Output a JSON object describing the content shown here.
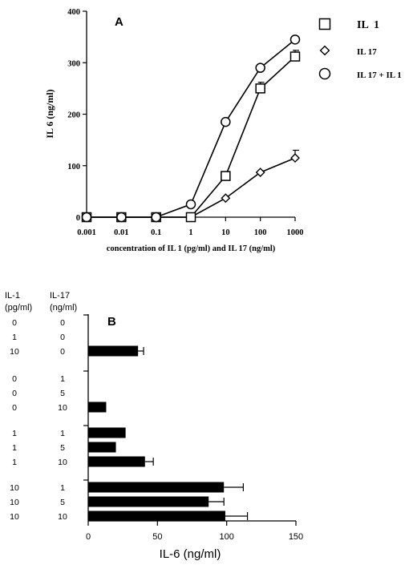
{
  "chart_data": [
    {
      "panel": "A",
      "type": "line",
      "ylabel": "IL 6 (ng/ml)",
      "xlabel": "concentration of IL 1 (pg/ml) and IL 17 (ng/ml)",
      "xscale": "log",
      "xlim": [
        0.001,
        1000
      ],
      "ylim": [
        0,
        400
      ],
      "x_ticks": [
        "0.001",
        "0.01",
        "0.1",
        "1",
        "10",
        "100",
        "1000"
      ],
      "y_ticks": [
        "0",
        "100",
        "200",
        "300",
        "400"
      ],
      "legend_position": "top-right",
      "x": [
        0.001,
        0.01,
        0.1,
        1,
        10,
        100,
        1000
      ],
      "series": [
        {
          "name": "IL  1",
          "marker": "square",
          "values": [
            0,
            0,
            0,
            0,
            80,
            250,
            312
          ],
          "error": [
            0,
            0,
            0,
            0,
            0,
            12,
            12
          ]
        },
        {
          "name": "IL 17",
          "marker": "diamond",
          "values": [
            0,
            0,
            0,
            0,
            37,
            87,
            115
          ],
          "error": [
            0,
            0,
            0,
            0,
            0,
            0,
            15
          ]
        },
        {
          "name": "IL 17 + IL 1",
          "marker": "circle",
          "values": [
            0,
            0,
            0,
            25,
            185,
            290,
            345
          ],
          "error": [
            0,
            0,
            0,
            0,
            0,
            0,
            0
          ]
        }
      ]
    },
    {
      "panel": "B",
      "type": "bar",
      "orientation": "horizontal",
      "xlabel": "IL-6 (ng/ml)",
      "xlim": [
        0,
        150
      ],
      "x_ticks": [
        "0",
        "50",
        "100",
        "150"
      ],
      "row_headers": [
        "IL-1\n(pg/ml)",
        "IL-17\n(ng/ml)"
      ],
      "groups": [
        {
          "rows": [
            {
              "il1": "0",
              "il17": "0",
              "value": 0,
              "error": 0
            },
            {
              "il1": "1",
              "il17": "0",
              "value": 0,
              "error": 0
            },
            {
              "il1": "10",
              "il17": "0",
              "value": 36,
              "error": 4
            }
          ]
        },
        {
          "rows": [
            {
              "il1": "0",
              "il17": "1",
              "value": 0,
              "error": 0
            },
            {
              "il1": "0",
              "il17": "5",
              "value": 0,
              "error": 0
            },
            {
              "il1": "0",
              "il17": "10",
              "value": 13,
              "error": 0
            }
          ]
        },
        {
          "rows": [
            {
              "il1": "1",
              "il17": "1",
              "value": 27,
              "error": 0
            },
            {
              "il1": "1",
              "il17": "5",
              "value": 20,
              "error": 0
            },
            {
              "il1": "1",
              "il17": "10",
              "value": 41,
              "error": 6
            }
          ]
        },
        {
          "rows": [
            {
              "il1": "10",
              "il17": "1",
              "value": 98,
              "error": 14
            },
            {
              "il1": "10",
              "il17": "5",
              "value": 87,
              "error": 11
            },
            {
              "il1": "10",
              "il17": "10",
              "value": 99,
              "error": 16
            }
          ]
        }
      ]
    }
  ]
}
